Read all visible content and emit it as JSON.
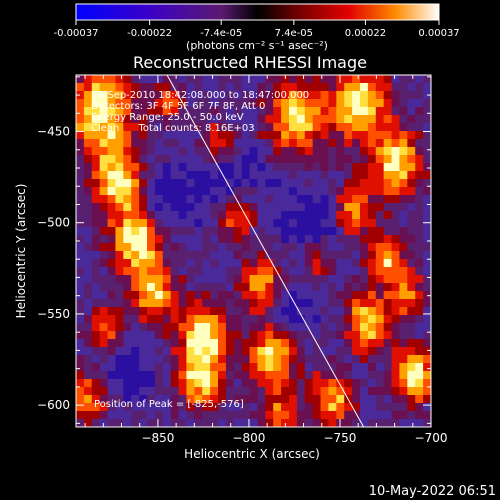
{
  "colorbar": {
    "tick_labels": [
      "-0.00037",
      "-0.00022",
      "-7.4e-05",
      "7.4e-05",
      "0.00022",
      "0.00037"
    ],
    "tick_values": [
      -0.00037,
      -0.00022,
      -7.4e-05,
      7.4e-05,
      0.00022,
      0.00037
    ],
    "range": [
      -0.00037,
      0.00037
    ],
    "units": "(photons cm⁻² s⁻¹ asec⁻²)"
  },
  "chart_data": {
    "type": "heatmap",
    "title": "Reconstructed RHESSI Image",
    "xlabel": "Heliocentric X (arcsec)",
    "ylabel": "Heliocentric Y (arcsec)",
    "xlim": [
      -895,
      -700
    ],
    "ylim": [
      -612,
      -419
    ],
    "x_ticks": [
      -850,
      -800,
      -750,
      -700
    ],
    "y_ticks": [
      -450,
      -500,
      -550,
      -600
    ],
    "x_tick_labels": [
      "−850",
      "−800",
      "−750",
      "−700"
    ],
    "y_tick_labels": [
      "−450",
      "−500",
      "−550",
      "−600"
    ],
    "annotations": [
      "16-Sep-2010 18:42:08.000 to 18:47:00.000",
      "Detectors: 3F 4F 5F 6F 7F 8F, Att 0",
      "Energy Range: 25.0 - 50.0 keV",
      "Clean      Total counts: 8.16E+03"
    ],
    "peak_label": "Position of Peak = [-825,-576]",
    "peak_position": [
      -825,
      -576
    ],
    "limb_line": [
      [
        -845,
        -419
      ],
      [
        -737,
        -612
      ]
    ]
  },
  "footer": {
    "date": "10-May-2022 06:51"
  }
}
